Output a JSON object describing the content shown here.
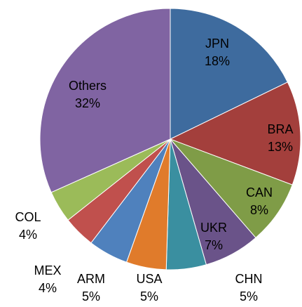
{
  "chart_data": {
    "type": "pie",
    "categories": [
      "JPN",
      "BRA",
      "CAN",
      "UKR",
      "CHN",
      "USA",
      "ARM",
      "MEX",
      "COL",
      "Others"
    ],
    "values": [
      18,
      13,
      8,
      7,
      5,
      5,
      5,
      4,
      4,
      32
    ],
    "value_labels": [
      "18%",
      "13%",
      "8%",
      "7%",
      "5%",
      "5%",
      "5%",
      "4%",
      "4%",
      "32%"
    ],
    "colors": [
      "#3e6b9e",
      "#a33f3c",
      "#7f9c47",
      "#6a5389",
      "#3a8fa0",
      "#e07b2b",
      "#4f81bd",
      "#c0504d",
      "#9bbb59",
      "#8064a2"
    ]
  }
}
